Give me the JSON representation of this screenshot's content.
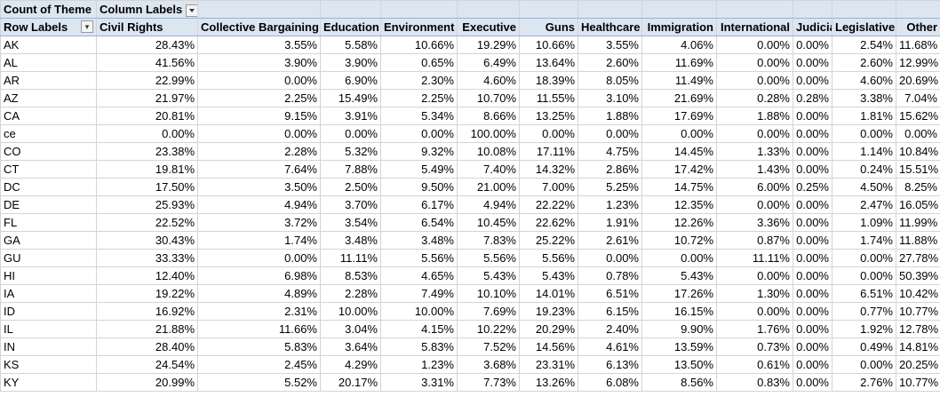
{
  "pivot": {
    "value_field": "Count of Theme",
    "column_labels": "Column Labels",
    "row_labels": "Row Labels",
    "icons": {
      "column_filter": "dropdown-arrow-icon",
      "row_sort": "sort-filter-icon"
    },
    "columns": [
      "Civil Rights",
      "Collective Bargaining",
      "Education",
      "Environment",
      "Executive",
      "Guns",
      "Healthcare",
      "Immigration",
      "International",
      "Judicial",
      "Legislative",
      "Other"
    ],
    "rows": [
      {
        "label": "AK",
        "values": [
          "28.43%",
          "3.55%",
          "5.58%",
          "10.66%",
          "19.29%",
          "10.66%",
          "3.55%",
          "4.06%",
          "0.00%",
          "0.00%",
          "2.54%",
          "11.68%"
        ]
      },
      {
        "label": "AL",
        "values": [
          "41.56%",
          "3.90%",
          "3.90%",
          "0.65%",
          "6.49%",
          "13.64%",
          "2.60%",
          "11.69%",
          "0.00%",
          "0.00%",
          "2.60%",
          "12.99%"
        ]
      },
      {
        "label": "AR",
        "values": [
          "22.99%",
          "0.00%",
          "6.90%",
          "2.30%",
          "4.60%",
          "18.39%",
          "8.05%",
          "11.49%",
          "0.00%",
          "0.00%",
          "4.60%",
          "20.69%"
        ]
      },
      {
        "label": "AZ",
        "values": [
          "21.97%",
          "2.25%",
          "15.49%",
          "2.25%",
          "10.70%",
          "11.55%",
          "3.10%",
          "21.69%",
          "0.28%",
          "0.28%",
          "3.38%",
          "7.04%"
        ]
      },
      {
        "label": "CA",
        "values": [
          "20.81%",
          "9.15%",
          "3.91%",
          "5.34%",
          "8.66%",
          "13.25%",
          "1.88%",
          "17.69%",
          "1.88%",
          "0.00%",
          "1.81%",
          "15.62%"
        ]
      },
      {
        "label": "ce",
        "values": [
          "0.00%",
          "0.00%",
          "0.00%",
          "0.00%",
          "100.00%",
          "0.00%",
          "0.00%",
          "0.00%",
          "0.00%",
          "0.00%",
          "0.00%",
          "0.00%"
        ]
      },
      {
        "label": "CO",
        "values": [
          "23.38%",
          "2.28%",
          "5.32%",
          "9.32%",
          "10.08%",
          "17.11%",
          "4.75%",
          "14.45%",
          "1.33%",
          "0.00%",
          "1.14%",
          "10.84%"
        ]
      },
      {
        "label": "CT",
        "values": [
          "19.81%",
          "7.64%",
          "7.88%",
          "5.49%",
          "7.40%",
          "14.32%",
          "2.86%",
          "17.42%",
          "1.43%",
          "0.00%",
          "0.24%",
          "15.51%"
        ]
      },
      {
        "label": "DC",
        "values": [
          "17.50%",
          "3.50%",
          "2.50%",
          "9.50%",
          "21.00%",
          "7.00%",
          "5.25%",
          "14.75%",
          "6.00%",
          "0.25%",
          "4.50%",
          "8.25%"
        ]
      },
      {
        "label": "DE",
        "values": [
          "25.93%",
          "4.94%",
          "3.70%",
          "6.17%",
          "4.94%",
          "22.22%",
          "1.23%",
          "12.35%",
          "0.00%",
          "0.00%",
          "2.47%",
          "16.05%"
        ]
      },
      {
        "label": "FL",
        "values": [
          "22.52%",
          "3.72%",
          "3.54%",
          "6.54%",
          "10.45%",
          "22.62%",
          "1.91%",
          "12.26%",
          "3.36%",
          "0.00%",
          "1.09%",
          "11.99%"
        ]
      },
      {
        "label": "GA",
        "values": [
          "30.43%",
          "1.74%",
          "3.48%",
          "3.48%",
          "7.83%",
          "25.22%",
          "2.61%",
          "10.72%",
          "0.87%",
          "0.00%",
          "1.74%",
          "11.88%"
        ]
      },
      {
        "label": "GU",
        "values": [
          "33.33%",
          "0.00%",
          "11.11%",
          "5.56%",
          "5.56%",
          "5.56%",
          "0.00%",
          "0.00%",
          "11.11%",
          "0.00%",
          "0.00%",
          "27.78%"
        ]
      },
      {
        "label": "HI",
        "values": [
          "12.40%",
          "6.98%",
          "8.53%",
          "4.65%",
          "5.43%",
          "5.43%",
          "0.78%",
          "5.43%",
          "0.00%",
          "0.00%",
          "0.00%",
          "50.39%"
        ]
      },
      {
        "label": "IA",
        "values": [
          "19.22%",
          "4.89%",
          "2.28%",
          "7.49%",
          "10.10%",
          "14.01%",
          "6.51%",
          "17.26%",
          "1.30%",
          "0.00%",
          "6.51%",
          "10.42%"
        ]
      },
      {
        "label": "ID",
        "values": [
          "16.92%",
          "2.31%",
          "10.00%",
          "10.00%",
          "7.69%",
          "19.23%",
          "6.15%",
          "16.15%",
          "0.00%",
          "0.00%",
          "0.77%",
          "10.77%"
        ]
      },
      {
        "label": "IL",
        "values": [
          "21.88%",
          "11.66%",
          "3.04%",
          "4.15%",
          "10.22%",
          "20.29%",
          "2.40%",
          "9.90%",
          "1.76%",
          "0.00%",
          "1.92%",
          "12.78%"
        ]
      },
      {
        "label": "IN",
        "values": [
          "28.40%",
          "5.83%",
          "3.64%",
          "5.83%",
          "7.52%",
          "14.56%",
          "4.61%",
          "13.59%",
          "0.73%",
          "0.00%",
          "0.49%",
          "14.81%"
        ]
      },
      {
        "label": "KS",
        "values": [
          "24.54%",
          "2.45%",
          "4.29%",
          "1.23%",
          "3.68%",
          "23.31%",
          "6.13%",
          "13.50%",
          "0.61%",
          "0.00%",
          "0.00%",
          "20.25%"
        ]
      },
      {
        "label": "KY",
        "values": [
          "20.99%",
          "5.52%",
          "20.17%",
          "3.31%",
          "7.73%",
          "13.26%",
          "6.08%",
          "8.56%",
          "0.83%",
          "0.00%",
          "2.76%",
          "10.77%"
        ]
      }
    ]
  }
}
